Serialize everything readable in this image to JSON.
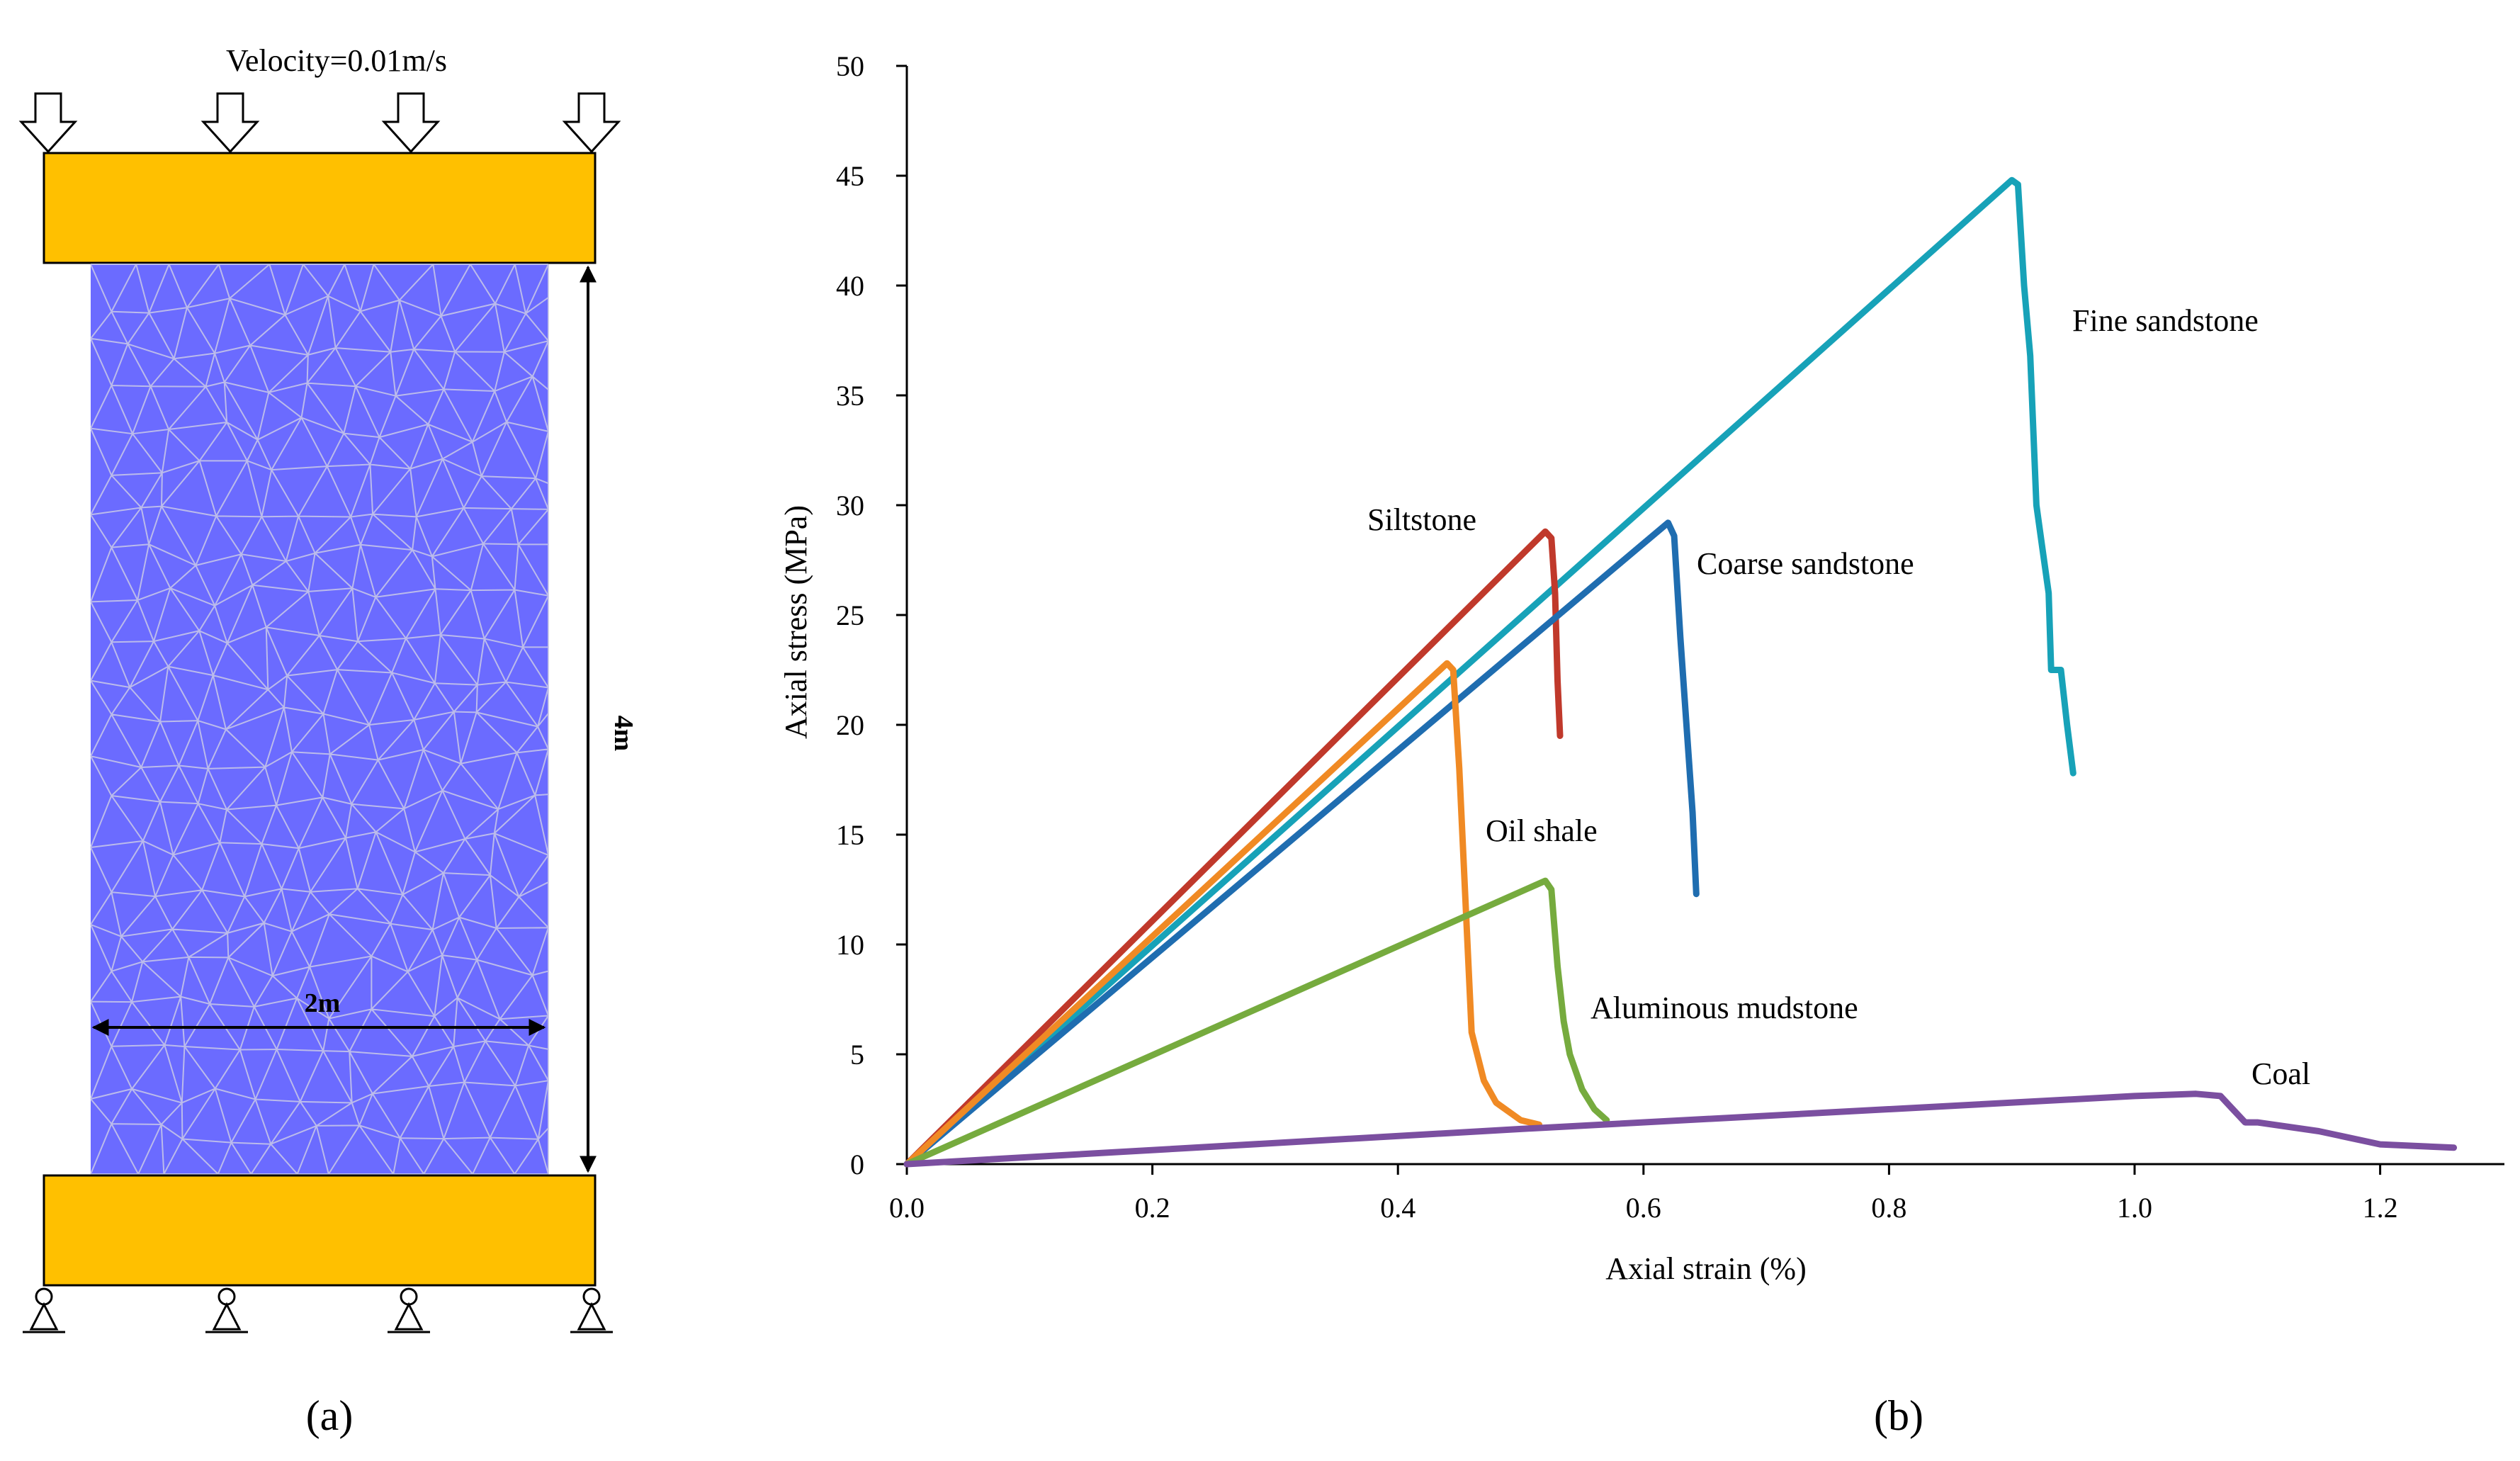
{
  "panel_a": {
    "label": "(a)",
    "load_text": "Velocity=0.01m/s",
    "width_text": "2m",
    "height_text": "4m",
    "plate_color": "#FFC000",
    "specimen_color": "#6B6BFF",
    "mesh_color": "#C9C9E8"
  },
  "panel_b": {
    "label": "(b)"
  },
  "chart_data": {
    "type": "line",
    "title": "",
    "xlabel": "Axial strain  (%)",
    "ylabel": "Axial stress  (MPa)",
    "xlim": [
      0,
      1.3
    ],
    "ylim": [
      0,
      50
    ],
    "xticks": [
      0.0,
      0.2,
      0.4,
      0.6,
      0.8,
      1.0,
      1.2
    ],
    "xtick_labels": [
      "0.0",
      "0.2",
      "0.4",
      "0.6",
      "0.8",
      "1.0",
      "1.2"
    ],
    "yticks": [
      0,
      5,
      10,
      15,
      20,
      25,
      30,
      35,
      40,
      45,
      50
    ],
    "ytick_labels": [
      "0",
      "5",
      "10",
      "15",
      "20",
      "25",
      "30",
      "35",
      "40",
      "45",
      "50"
    ],
    "grid": false,
    "series": [
      {
        "name": "Fine sandstone",
        "color": "#17A2B8",
        "x": [
          0,
          0.9,
          0.905,
          0.91,
          0.915,
          0.92,
          0.925,
          0.93,
          0.932,
          0.94,
          0.945,
          0.95
        ],
        "y": [
          0,
          44.8,
          44.6,
          40,
          36.8,
          30,
          28,
          26,
          22.5,
          22.5,
          20,
          17.8
        ]
      },
      {
        "name": "Siltstone",
        "color": "#C0392B",
        "x": [
          0,
          0.52,
          0.525,
          0.528,
          0.53,
          0.532
        ],
        "y": [
          0,
          28.8,
          28.5,
          26,
          22,
          19.5
        ]
      },
      {
        "name": "Coarse sandstone",
        "color": "#1F6DB0",
        "x": [
          0,
          0.62,
          0.625,
          0.63,
          0.64,
          0.643
        ],
        "y": [
          0,
          29.2,
          28.6,
          24,
          16,
          12.3
        ]
      },
      {
        "name": "Oil shale",
        "color": "#F08A24",
        "x": [
          0,
          0.44,
          0.445,
          0.45,
          0.455,
          0.46,
          0.47,
          0.48,
          0.5,
          0.515
        ],
        "y": [
          0,
          22.8,
          22.5,
          18,
          12,
          6,
          3.8,
          2.8,
          2.0,
          1.8
        ]
      },
      {
        "name": "Aluminous mudstone",
        "color": "#76AB3E",
        "x": [
          0,
          0.52,
          0.525,
          0.53,
          0.535,
          0.54,
          0.55,
          0.56,
          0.57
        ],
        "y": [
          0,
          12.9,
          12.5,
          9,
          6.5,
          5,
          3.4,
          2.5,
          2.0
        ]
      },
      {
        "name": "Coal",
        "color": "#7B4FA0",
        "x": [
          0,
          0.5,
          1.0,
          1.05,
          1.07,
          1.08,
          1.09,
          1.1,
          1.15,
          1.2,
          1.26
        ],
        "y": [
          0,
          1.6,
          3.1,
          3.2,
          3.1,
          2.5,
          1.9,
          1.9,
          1.5,
          0.9,
          0.75
        ]
      }
    ],
    "annotations": [
      {
        "text": "Fine sandstone",
        "series": "Fine sandstone"
      },
      {
        "text": "Siltstone",
        "series": "Siltstone"
      },
      {
        "text": "Coarse sandstone",
        "series": "Coarse sandstone"
      },
      {
        "text": "Oil shale",
        "series": "Oil shale"
      },
      {
        "text": "Aluminous mudstone",
        "series": "Aluminous mudstone"
      },
      {
        "text": "Coal",
        "series": "Coal"
      }
    ]
  }
}
